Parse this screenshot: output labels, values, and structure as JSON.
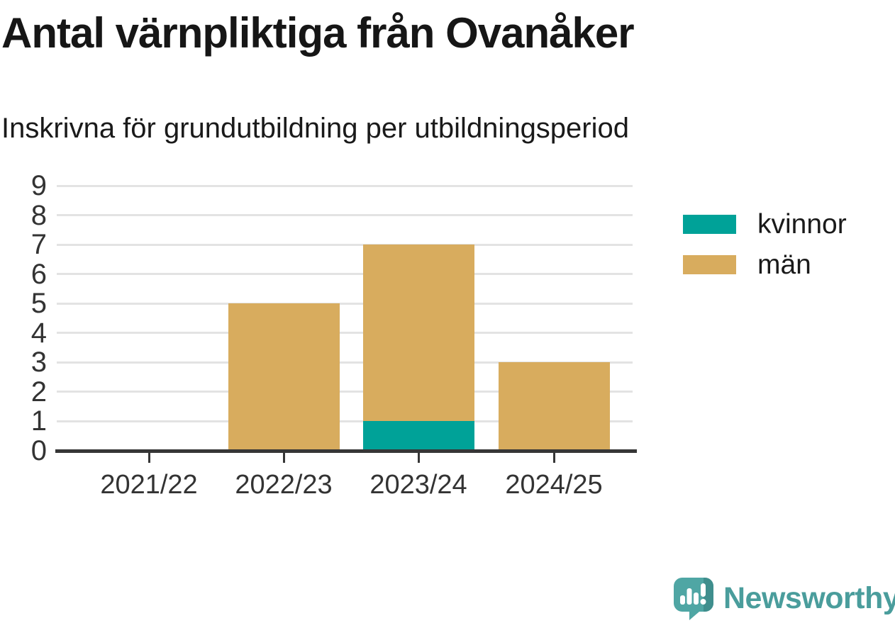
{
  "chart_data": {
    "type": "bar",
    "stacked": true,
    "title": "Antal värnpliktiga från Ovanåker",
    "subtitle": "Inskrivna för grundutbildning per utbildningsperiod",
    "categories": [
      "2021/22",
      "2022/23",
      "2023/24",
      "2024/25"
    ],
    "series": [
      {
        "name": "kvinnor",
        "color": "#00a298",
        "values": [
          0,
          0,
          1,
          0
        ]
      },
      {
        "name": "män",
        "color": "#d8ac5e",
        "values": [
          0,
          5,
          6,
          3
        ]
      }
    ],
    "ylim": [
      0,
      9
    ],
    "yticks": [
      0,
      1,
      2,
      3,
      4,
      5,
      6,
      7,
      8,
      9
    ],
    "grid": true,
    "legend_position": "right"
  },
  "branding": {
    "name": "Newsworthy",
    "wordmark_color": "#4a9d9c",
    "icon": "newsworthy-speech-bubble-bar-chart-icon",
    "icon_color": "#4fa6a4",
    "icon_shade_color": "#3f8e8d"
  },
  "colors": {
    "axis": "#363636",
    "gridline": "#e3e3e3",
    "tick_label": "#333333",
    "text": "#1a1a1a",
    "background": "#ffffff"
  }
}
